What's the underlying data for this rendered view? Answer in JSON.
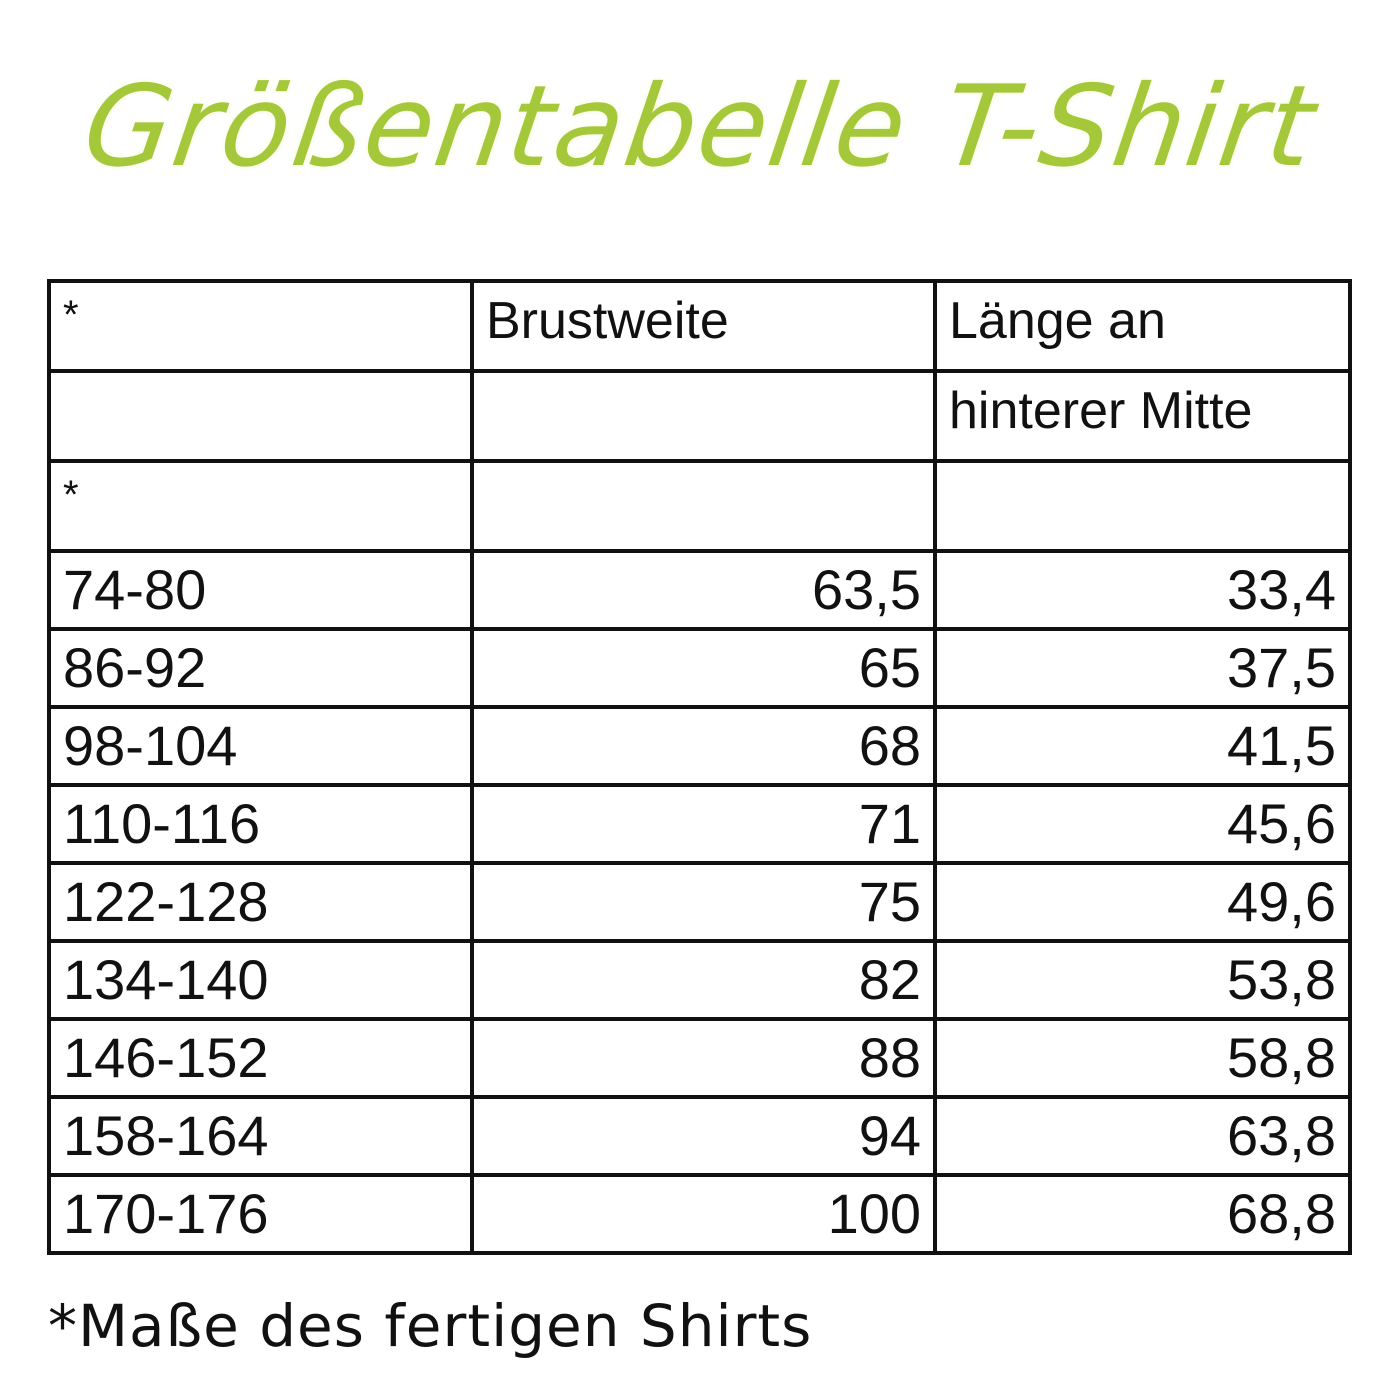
{
  "title": "Größentabelle T-Shirt",
  "title_color": "#a5c83a",
  "table": {
    "header_rows": [
      [
        "*",
        "Brustweite",
        "Länge an"
      ],
      [
        "",
        "",
        "hinterer Mitte"
      ],
      [
        "*",
        "",
        ""
      ]
    ],
    "rows": [
      [
        "74-80",
        "63,5",
        "33,4"
      ],
      [
        "86-92",
        "65",
        "37,5"
      ],
      [
        "98-104",
        "68",
        "41,5"
      ],
      [
        "110-116",
        "71",
        "45,6"
      ],
      [
        "122-128",
        "75",
        "49,6"
      ],
      [
        "134-140",
        "82",
        "53,8"
      ],
      [
        "146-152",
        "88",
        "58,8"
      ],
      [
        "158-164",
        "94",
        "63,8"
      ],
      [
        "170-176",
        "100",
        "68,8"
      ]
    ]
  },
  "footnote": "*Maße des fertigen Shirts"
}
